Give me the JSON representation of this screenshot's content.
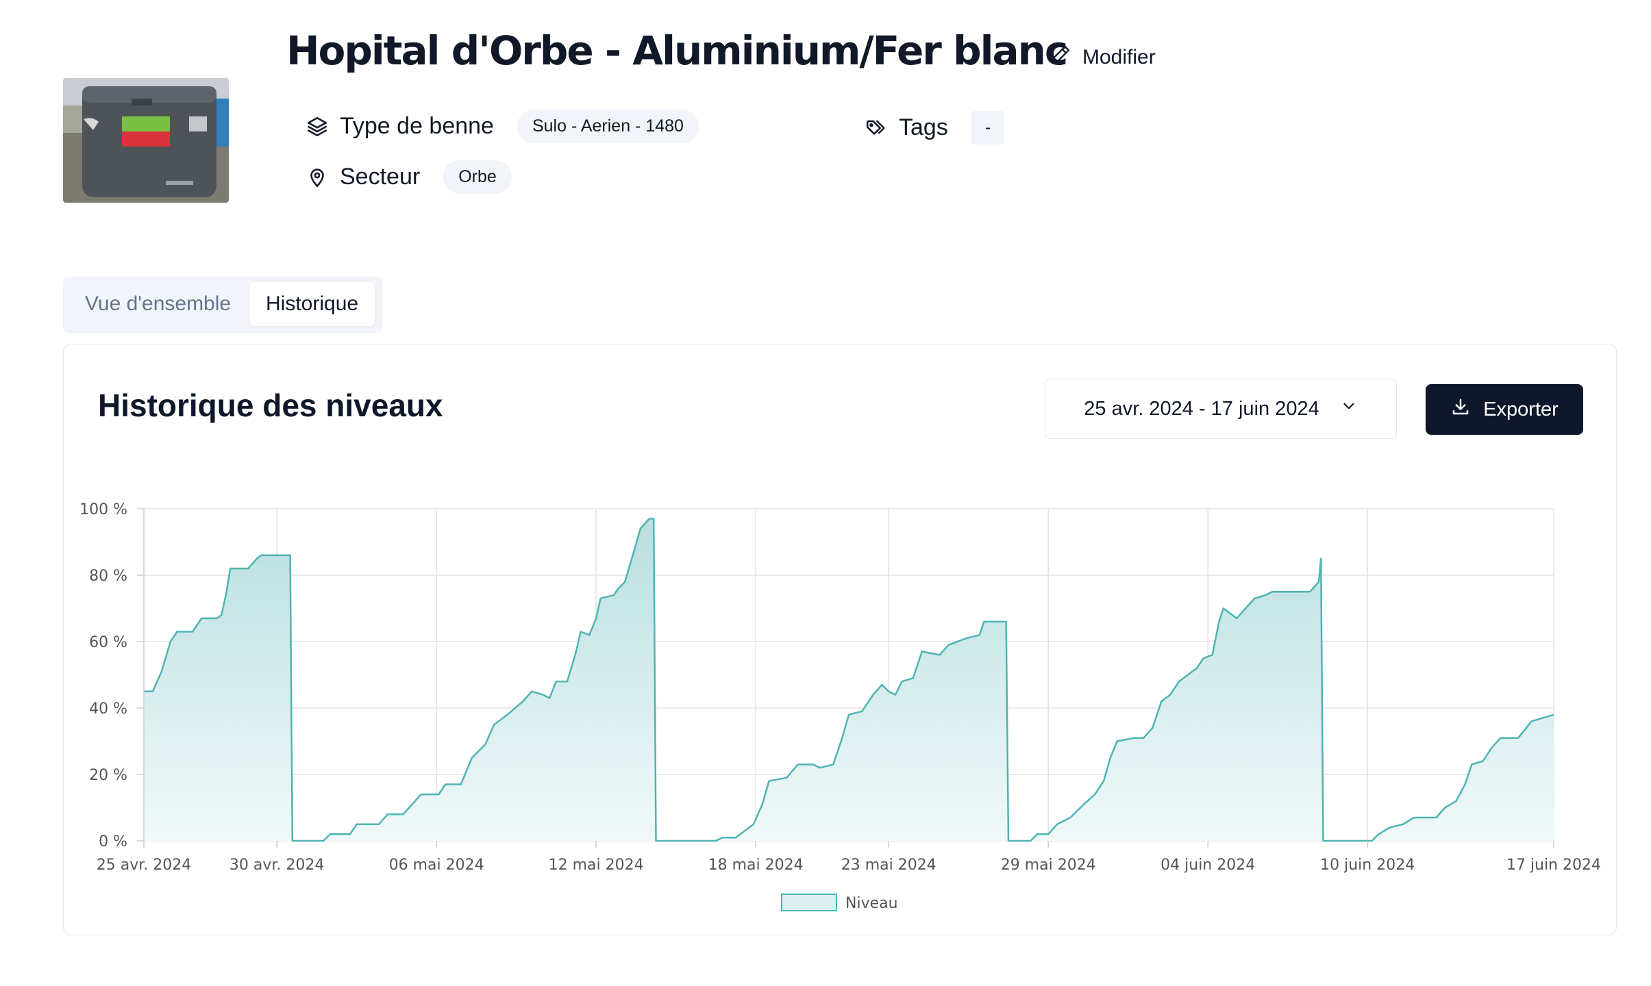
{
  "header": {
    "title": "Hopital d'Orbe - Aluminium/Fer blanc",
    "edit_label": "Modifier",
    "photo_icon": "container-photo",
    "bin_type": {
      "label": "Type de benne",
      "value": "Sulo - Aerien - 1480",
      "icon": "layers-icon"
    },
    "sector": {
      "label": "Secteur",
      "value": "Orbe",
      "icon": "map-pin-icon"
    },
    "tags": {
      "label": "Tags",
      "value": "-",
      "icon": "tags-icon"
    }
  },
  "tabs": [
    {
      "label": "Vue d'ensemble",
      "active": false
    },
    {
      "label": "Historique",
      "active": true
    }
  ],
  "card": {
    "title": "Historique des niveaux",
    "date_range": "25 avr. 2024 - 17 juin 2024",
    "export_label": "Exporter"
  },
  "colors": {
    "line": "#4fb3b3",
    "fill_top": "#b9dfdf",
    "fill_bottom": "#f1f9f9",
    "accent_dark": "#0f172a"
  },
  "chart_data": {
    "type": "area",
    "ylim": [
      0,
      100
    ],
    "y_ticks": [
      "0 %",
      "20 %",
      "40 %",
      "60 %",
      "80 %",
      "100 %"
    ],
    "x_range": [
      "2024-04-25",
      "2024-06-17"
    ],
    "x_ticks": [
      {
        "date": "2024-04-25",
        "label": "25 avr. 2024"
      },
      {
        "date": "2024-04-30",
        "label": "30 avr. 2024"
      },
      {
        "date": "2024-05-06",
        "label": "06 mai 2024"
      },
      {
        "date": "2024-05-12",
        "label": "12 mai 2024"
      },
      {
        "date": "2024-05-18",
        "label": "18 mai 2024"
      },
      {
        "date": "2024-05-23",
        "label": "23 mai 2024"
      },
      {
        "date": "2024-05-29",
        "label": "29 mai 2024"
      },
      {
        "date": "2024-06-04",
        "label": "04 juin 2024"
      },
      {
        "date": "2024-06-10",
        "label": "10 juin 2024"
      },
      {
        "date": "2024-06-17",
        "label": "17 juin 2024"
      }
    ],
    "legend": "Niveau",
    "legend_position": "bottom",
    "grid": true,
    "series": [
      {
        "name": "Niveau",
        "points": [
          [
            "2024-04-25T00:00",
            45
          ],
          [
            "2024-04-25T08:00",
            45
          ],
          [
            "2024-04-25T16:00",
            51
          ],
          [
            "2024-04-26T00:00",
            60
          ],
          [
            "2024-04-26T06:00",
            63
          ],
          [
            "2024-04-26T20:00",
            63
          ],
          [
            "2024-04-27T04:00",
            67
          ],
          [
            "2024-04-27T18:00",
            67
          ],
          [
            "2024-04-27T22:00",
            68
          ],
          [
            "2024-04-28T02:00",
            74
          ],
          [
            "2024-04-28T06:00",
            82
          ],
          [
            "2024-04-28T22:00",
            82
          ],
          [
            "2024-04-29T06:00",
            85
          ],
          [
            "2024-04-29T10:00",
            86
          ],
          [
            "2024-04-30T12:00",
            86
          ],
          [
            "2024-04-30T14:00",
            0
          ],
          [
            "2024-05-01T18:00",
            0
          ],
          [
            "2024-05-02T00:00",
            2
          ],
          [
            "2024-05-02T18:00",
            2
          ],
          [
            "2024-05-03T00:00",
            5
          ],
          [
            "2024-05-03T20:00",
            5
          ],
          [
            "2024-05-04T04:00",
            8
          ],
          [
            "2024-05-04T18:00",
            8
          ],
          [
            "2024-05-05T02:00",
            11
          ],
          [
            "2024-05-05T10:00",
            14
          ],
          [
            "2024-05-06T02:00",
            14
          ],
          [
            "2024-05-06T08:00",
            17
          ],
          [
            "2024-05-06T22:00",
            17
          ],
          [
            "2024-05-07T08:00",
            25
          ],
          [
            "2024-05-07T20:00",
            29
          ],
          [
            "2024-05-08T04:00",
            35
          ],
          [
            "2024-05-08T16:00",
            38
          ],
          [
            "2024-05-09T06:00",
            42
          ],
          [
            "2024-05-09T14:00",
            45
          ],
          [
            "2024-05-10T00:00",
            44
          ],
          [
            "2024-05-10T06:00",
            43
          ],
          [
            "2024-05-10T12:00",
            48
          ],
          [
            "2024-05-10T22:00",
            48
          ],
          [
            "2024-05-11T06:00",
            57
          ],
          [
            "2024-05-11T10:00",
            63
          ],
          [
            "2024-05-11T18:00",
            62
          ],
          [
            "2024-05-12T00:00",
            67
          ],
          [
            "2024-05-12T04:00",
            73
          ],
          [
            "2024-05-12T16:00",
            74
          ],
          [
            "2024-05-12T20:00",
            76
          ],
          [
            "2024-05-13T02:00",
            78
          ],
          [
            "2024-05-13T10:00",
            87
          ],
          [
            "2024-05-13T16:00",
            94
          ],
          [
            "2024-05-14T00:00",
            97
          ],
          [
            "2024-05-14T04:00",
            97
          ],
          [
            "2024-05-14T06:00",
            0
          ],
          [
            "2024-05-16T12:00",
            0
          ],
          [
            "2024-05-16T18:00",
            1
          ],
          [
            "2024-05-17T06:00",
            1
          ],
          [
            "2024-05-17T14:00",
            3
          ],
          [
            "2024-05-17T22:00",
            5
          ],
          [
            "2024-05-18T06:00",
            11
          ],
          [
            "2024-05-18T12:00",
            18
          ],
          [
            "2024-05-19T04:00",
            19
          ],
          [
            "2024-05-19T14:00",
            23
          ],
          [
            "2024-05-20T04:00",
            23
          ],
          [
            "2024-05-20T10:00",
            22
          ],
          [
            "2024-05-20T22:00",
            23
          ],
          [
            "2024-05-21T06:00",
            31
          ],
          [
            "2024-05-21T12:00",
            38
          ],
          [
            "2024-05-22T00:00",
            39
          ],
          [
            "2024-05-22T10:00",
            44
          ],
          [
            "2024-05-22T18:00",
            47
          ],
          [
            "2024-05-23T00:00",
            45
          ],
          [
            "2024-05-23T06:00",
            44
          ],
          [
            "2024-05-23T12:00",
            48
          ],
          [
            "2024-05-23T22:00",
            49
          ],
          [
            "2024-05-24T06:00",
            57
          ],
          [
            "2024-05-24T22:00",
            56
          ],
          [
            "2024-05-25T06:00",
            59
          ],
          [
            "2024-05-25T22:00",
            61
          ],
          [
            "2024-05-26T10:00",
            62
          ],
          [
            "2024-05-26T14:00",
            66
          ],
          [
            "2024-05-27T10:00",
            66
          ],
          [
            "2024-05-27T12:00",
            0
          ],
          [
            "2024-05-28T08:00",
            0
          ],
          [
            "2024-05-28T14:00",
            2
          ],
          [
            "2024-05-29T00:00",
            2
          ],
          [
            "2024-05-29T08:00",
            5
          ],
          [
            "2024-05-29T20:00",
            7
          ],
          [
            "2024-05-30T08:00",
            11
          ],
          [
            "2024-05-30T18:00",
            14
          ],
          [
            "2024-05-31T02:00",
            18
          ],
          [
            "2024-05-31T08:00",
            25
          ],
          [
            "2024-05-31T14:00",
            30
          ],
          [
            "2024-06-01T06:00",
            31
          ],
          [
            "2024-06-01T14:00",
            31
          ],
          [
            "2024-06-01T22:00",
            34
          ],
          [
            "2024-06-02T06:00",
            42
          ],
          [
            "2024-06-02T14:00",
            44
          ],
          [
            "2024-06-02T22:00",
            48
          ],
          [
            "2024-06-03T06:00",
            50
          ],
          [
            "2024-06-03T14:00",
            52
          ],
          [
            "2024-06-03T20:00",
            55
          ],
          [
            "2024-06-04T04:00",
            56
          ],
          [
            "2024-06-04T10:00",
            66
          ],
          [
            "2024-06-04T14:00",
            70
          ],
          [
            "2024-06-05T02:00",
            67
          ],
          [
            "2024-06-05T10:00",
            70
          ],
          [
            "2024-06-05T18:00",
            73
          ],
          [
            "2024-06-06T04:00",
            74
          ],
          [
            "2024-06-06T10:00",
            75
          ],
          [
            "2024-06-07T20:00",
            75
          ],
          [
            "2024-06-08T04:00",
            78
          ],
          [
            "2024-06-08T06:00",
            85
          ],
          [
            "2024-06-08T08:00",
            0
          ],
          [
            "2024-06-10T04:00",
            0
          ],
          [
            "2024-06-10T10:00",
            2
          ],
          [
            "2024-06-10T20:00",
            4
          ],
          [
            "2024-06-11T08:00",
            5
          ],
          [
            "2024-06-11T18:00",
            7
          ],
          [
            "2024-06-12T14:00",
            7
          ],
          [
            "2024-06-12T22:00",
            10
          ],
          [
            "2024-06-13T08:00",
            12
          ],
          [
            "2024-06-13T16:00",
            17
          ],
          [
            "2024-06-13T22:00",
            23
          ],
          [
            "2024-06-14T08:00",
            24
          ],
          [
            "2024-06-14T16:00",
            28
          ],
          [
            "2024-06-15T00:00",
            31
          ],
          [
            "2024-06-15T16:00",
            31
          ],
          [
            "2024-06-16T04:00",
            36
          ],
          [
            "2024-06-17T00:00",
            38
          ]
        ]
      }
    ]
  }
}
